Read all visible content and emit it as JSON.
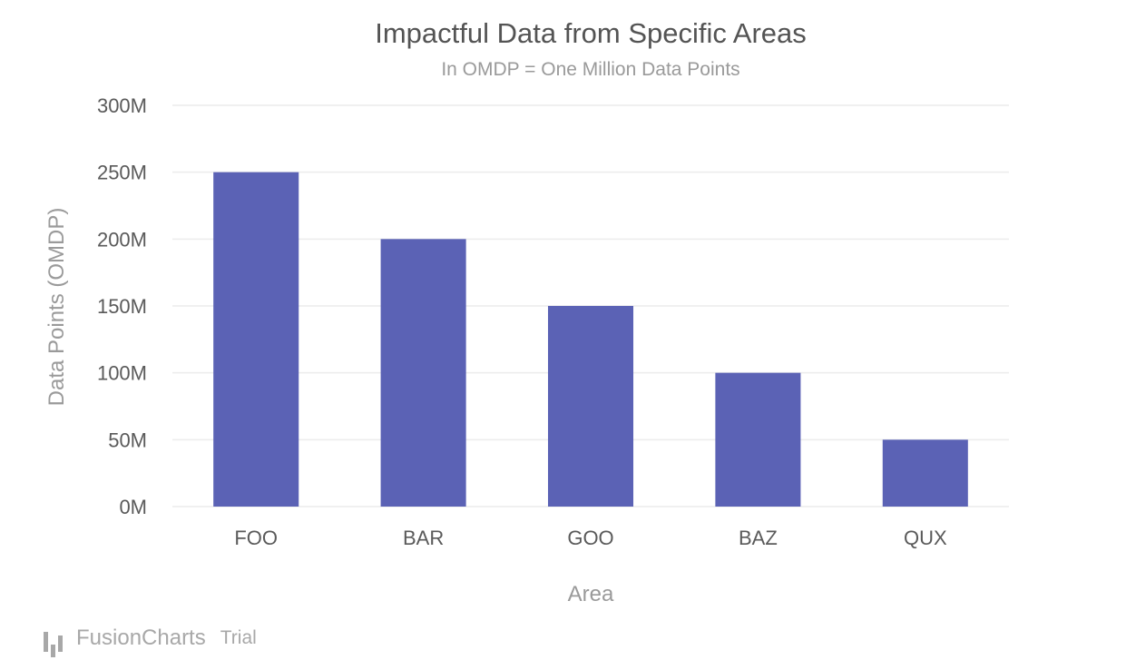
{
  "chart_data": {
    "type": "bar",
    "title": "Impactful Data from Specific Areas",
    "subtitle": "In OMDP = One Million Data Points",
    "xlabel": "Area",
    "ylabel": "Data Points (OMDP)",
    "categories": [
      "FOO",
      "BAR",
      "GOO",
      "BAZ",
      "QUX"
    ],
    "values": [
      250,
      200,
      150,
      100,
      50
    ],
    "ylim": [
      0,
      300
    ],
    "yticks": [
      0,
      50,
      100,
      150,
      200,
      250,
      300
    ],
    "ytick_labels": [
      "0M",
      "50M",
      "100M",
      "150M",
      "200M",
      "250M",
      "300M"
    ],
    "grid": true,
    "bar_color": "#5b62b5"
  },
  "watermark": {
    "brand": "FusionCharts",
    "suffix": "Trial",
    "icon": "fusioncharts-logo-icon"
  }
}
